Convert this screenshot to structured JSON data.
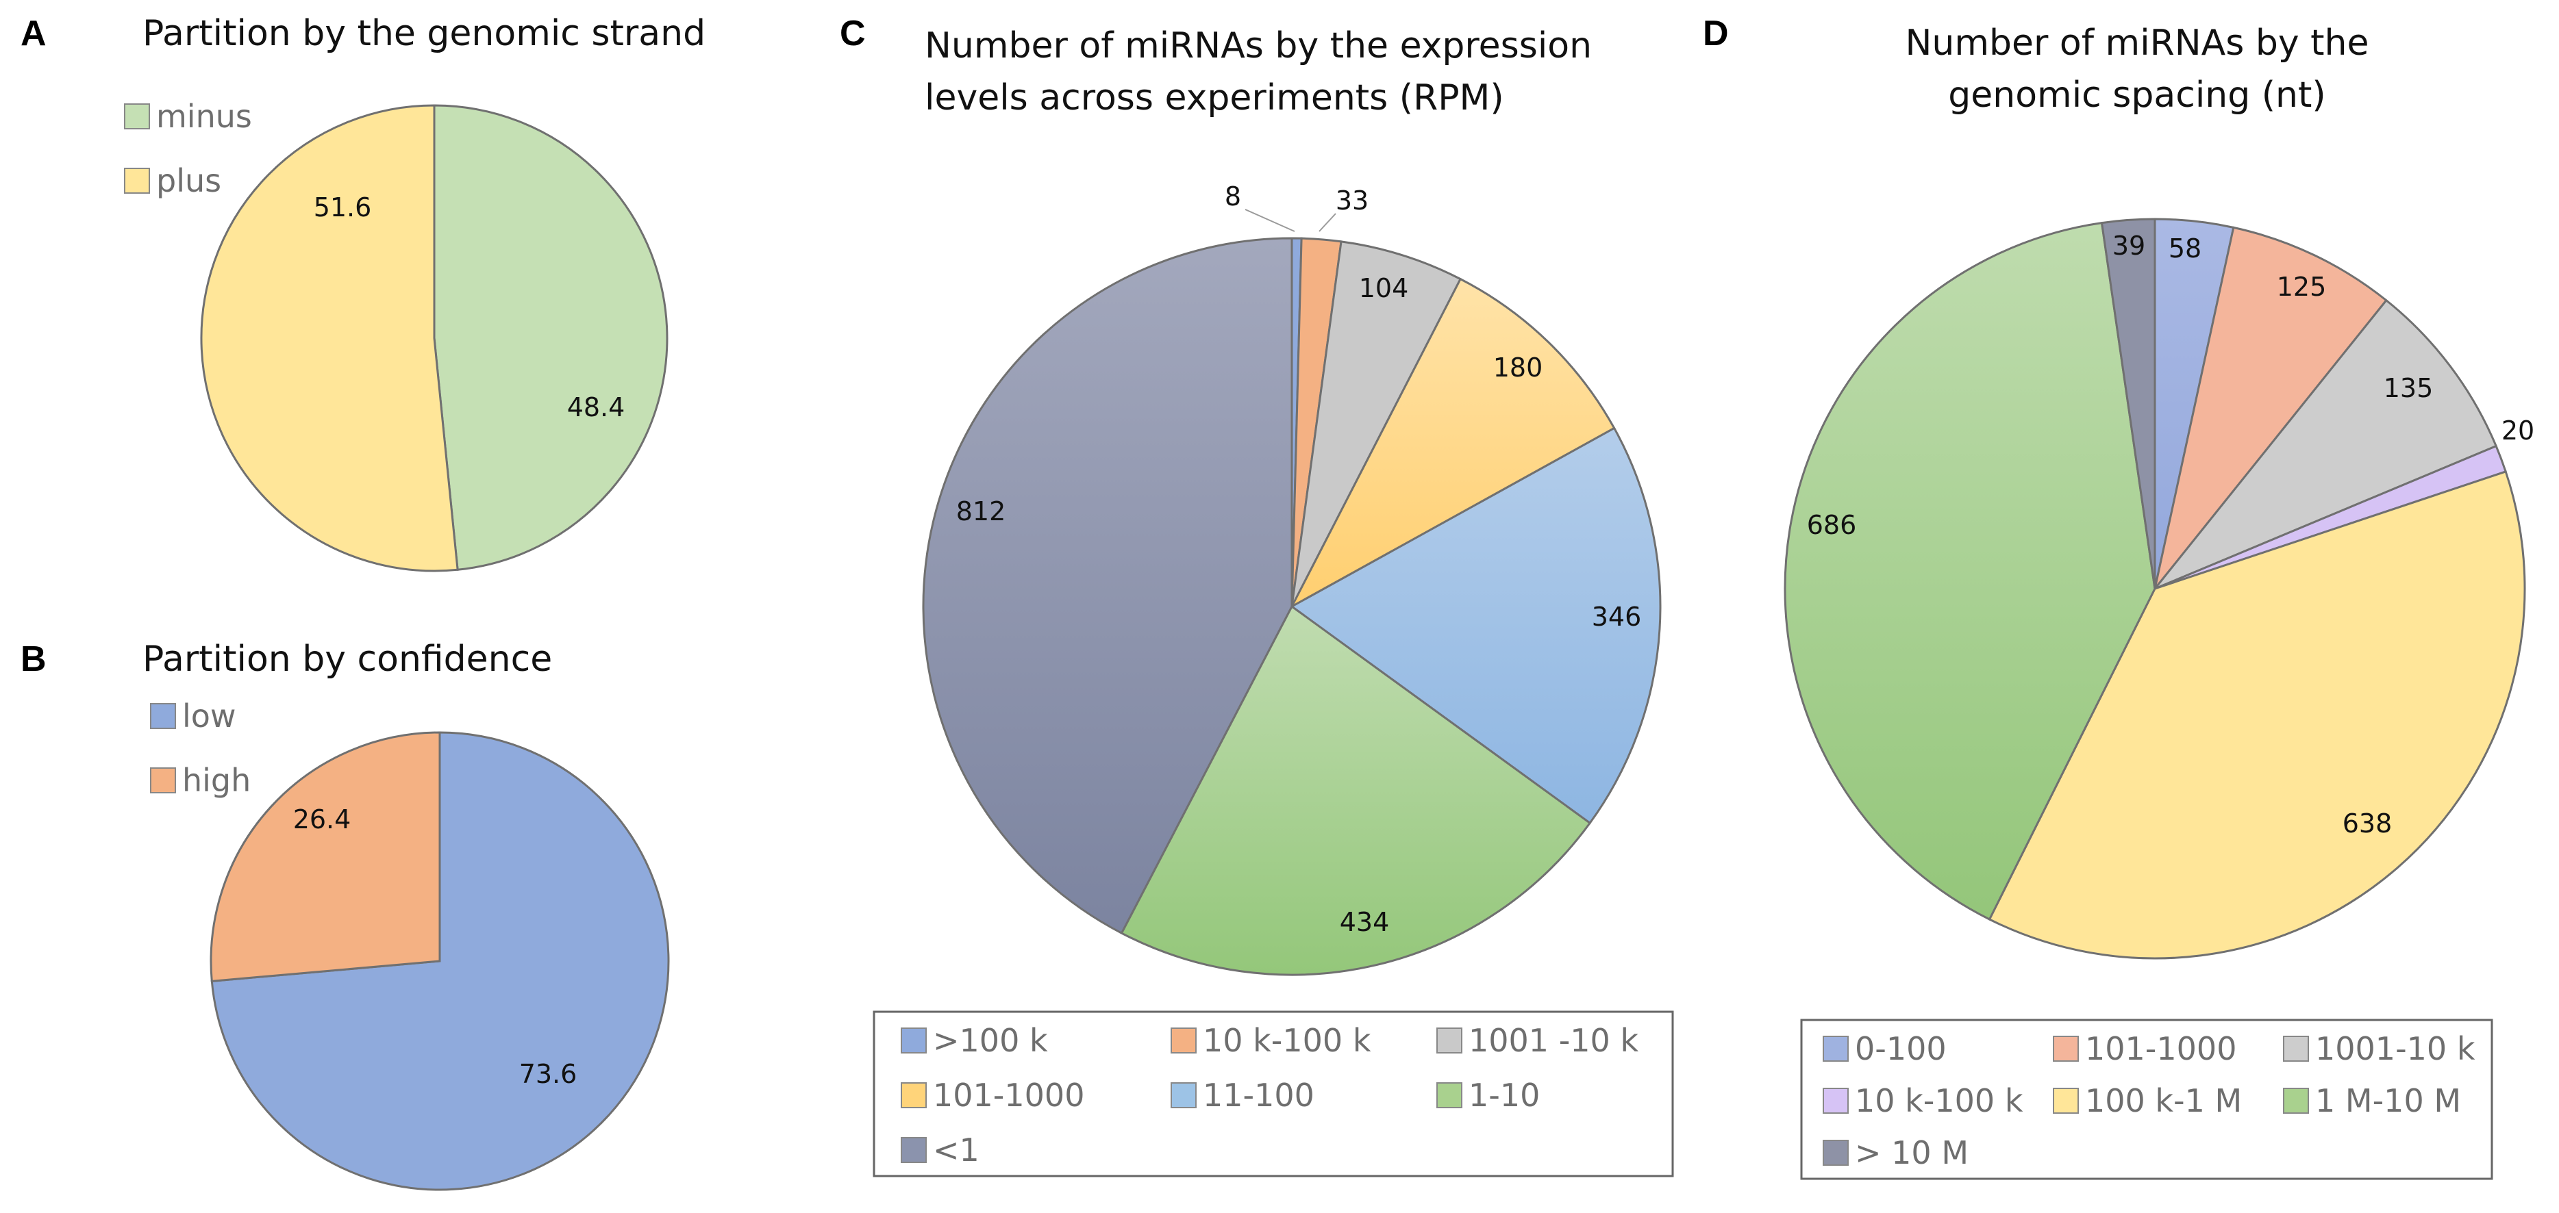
{
  "chart_data": [
    {
      "id": "A",
      "type": "pie",
      "panel_letter": "A",
      "title": "Partition by the genomic strand",
      "legend_position": "top-left",
      "series": [
        {
          "name": "minus",
          "value": 48.4,
          "label": "48.4",
          "color": "#c5e0b4"
        },
        {
          "name": "plus",
          "value": 51.6,
          "label": "51.6",
          "color": "#ffe699"
        }
      ]
    },
    {
      "id": "B",
      "type": "pie",
      "panel_letter": "B",
      "title": "Partition by confidence",
      "legend_position": "top-left",
      "series": [
        {
          "name": "low",
          "value": 73.6,
          "label": "73.6",
          "color": "#8faadc"
        },
        {
          "name": "high",
          "value": 26.4,
          "label": "26.4",
          "color": "#f4b183"
        }
      ]
    },
    {
      "id": "C",
      "type": "pie",
      "panel_letter": "C",
      "title": [
        "Number of miRNAs by the expression",
        "levels across experiments (RPM)"
      ],
      "legend_position": "bottom",
      "series": [
        {
          "name": ">100 k",
          "value": 8,
          "label": "8",
          "color": "#8faadc"
        },
        {
          "name": "10 k-100 k",
          "value": 33,
          "label": "33",
          "color": "#f4b183"
        },
        {
          "name": "1001 -10 k",
          "value": 104,
          "label": "104",
          "color": "#c9c9c9"
        },
        {
          "name": "101-1000",
          "value": 180,
          "label": "180",
          "color": "#ffd47a"
        },
        {
          "name": "11-100",
          "value": 346,
          "label": "346",
          "color": "#9dc3e6"
        },
        {
          "name": "1-10",
          "value": 434,
          "label": "434",
          "color": "#a9d18e"
        },
        {
          "name": "<1",
          "value": 812,
          "label": "812",
          "color": "#8b93ad"
        }
      ]
    },
    {
      "id": "D",
      "type": "pie",
      "panel_letter": "D",
      "title": [
        "Number of miRNAs by the",
        "genomic spacing (nt)"
      ],
      "legend_position": "bottom",
      "series": [
        {
          "name": "0-100",
          "value": 58,
          "label": "58",
          "color": "#9fb2e0"
        },
        {
          "name": "101-1000",
          "value": 125,
          "label": "125",
          "color": "#f4b59b"
        },
        {
          "name": "1001-10 k",
          "value": 135,
          "label": "135",
          "color": "#cdcdcd"
        },
        {
          "name": "10 k-100 k",
          "value": 20,
          "label": "20",
          "color": "#d6c3f5"
        },
        {
          "name": "100 k-1 M",
          "value": 638,
          "label": "638",
          "color": "#ffe699"
        },
        {
          "name": "1 M-10 M",
          "value": 686,
          "label": "686",
          "color": "#a9d18e"
        },
        {
          "name": "> 10 M",
          "value": 39,
          "label": "39",
          "color": "#8e92a6"
        }
      ]
    }
  ]
}
